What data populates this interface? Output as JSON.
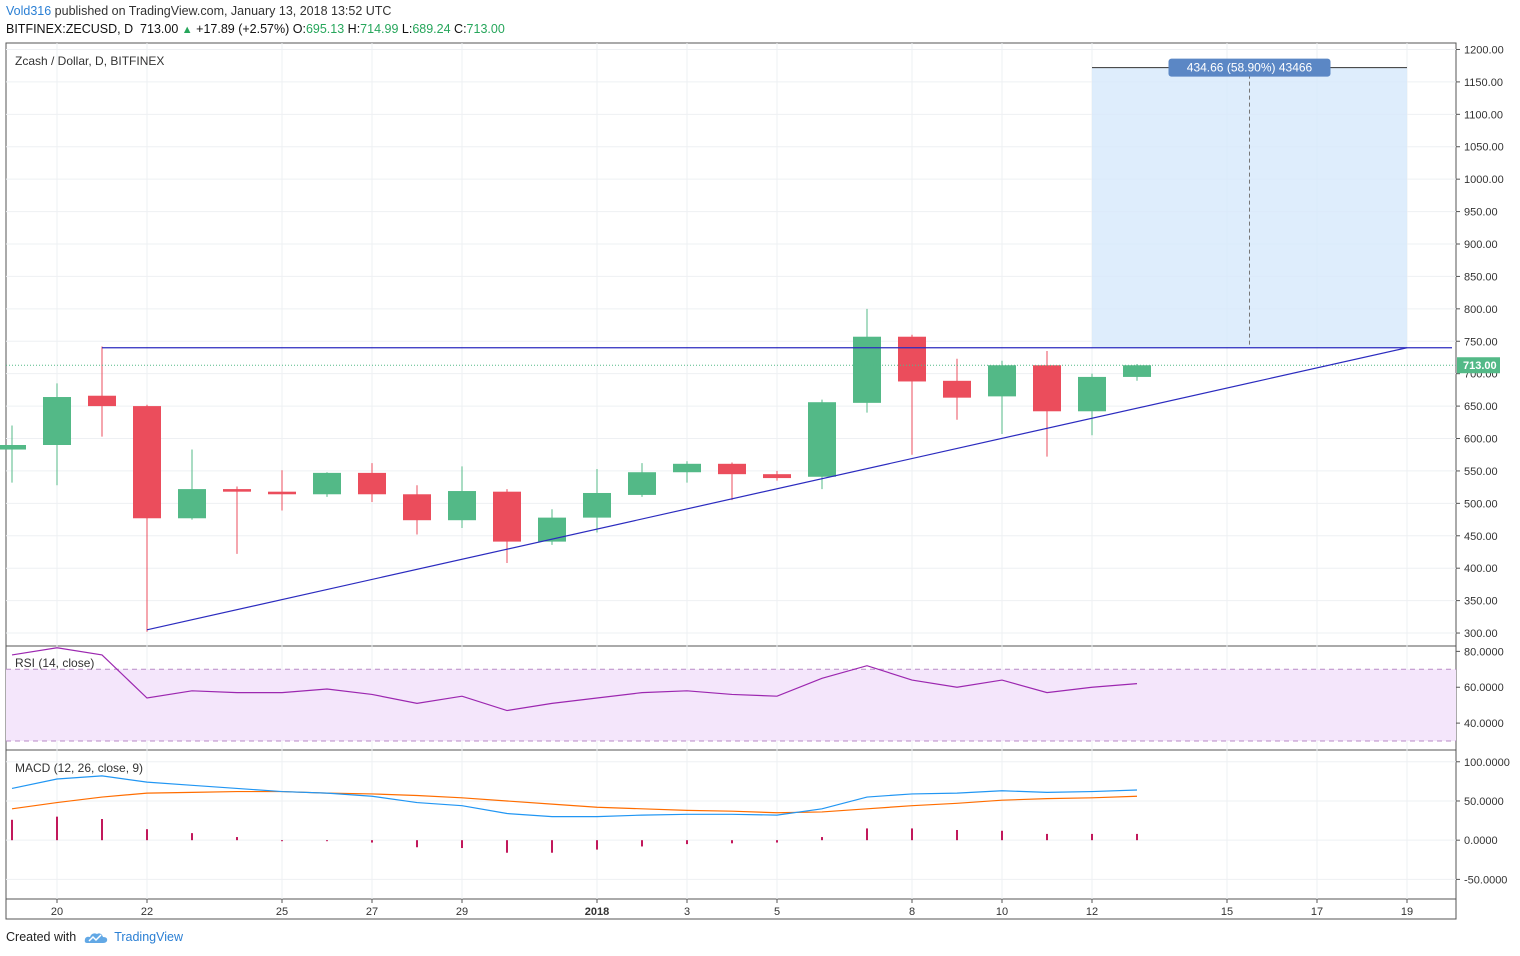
{
  "header": {
    "author": "Vold316",
    "published_text": " published on TradingView.com, January 13, 2018 13:52 UTC",
    "symbol": "BITFINEX:ZECUSD, D",
    "last": "713.00",
    "change": "+17.89 (+2.57%)",
    "o_label": "O:",
    "o": "695.13",
    "h_label": "H:",
    "h": "714.99",
    "l_label": "L:",
    "l": "689.24",
    "c_label": "C:",
    "c": "713.00"
  },
  "footer": {
    "created_with": "Created with",
    "brand": "TradingView"
  },
  "colors": {
    "up": "#53b987",
    "down": "#eb4d5c",
    "line": "#2b2bbf",
    "rsi": "#9c27b0",
    "macd": "#2196f3",
    "signal": "#ff6d00",
    "box": "#d6e9fb",
    "label": "#5b87c5"
  },
  "chart_data": {
    "type": "candlestick",
    "title": "Zcash / Dollar, D, BITFINEX",
    "x_labels": [
      {
        "i": 1,
        "text": "20"
      },
      {
        "i": 3,
        "text": "22"
      },
      {
        "i": 6,
        "text": "25"
      },
      {
        "i": 8,
        "text": "27"
      },
      {
        "i": 10,
        "text": "29"
      },
      {
        "i": 13,
        "text": "2018"
      },
      {
        "i": 15,
        "text": "3"
      },
      {
        "i": 17,
        "text": "5"
      },
      {
        "i": 20,
        "text": "8"
      },
      {
        "i": 22,
        "text": "10"
      },
      {
        "i": 24,
        "text": "12"
      },
      {
        "i": 27,
        "text": "15"
      },
      {
        "i": 29,
        "text": "17"
      },
      {
        "i": 31,
        "text": "19"
      }
    ],
    "price_axis": {
      "ticks": [
        "1200.00",
        "1150.00",
        "1100.00",
        "1050.00",
        "1000.00",
        "950.00",
        "900.00",
        "850.00",
        "800.00",
        "750.00",
        "700.00",
        "650.00",
        "600.00",
        "550.00",
        "500.00",
        "450.00",
        "400.00",
        "350.00",
        "300.00"
      ],
      "range": [
        280,
        1210
      ],
      "last_label": "713.00",
      "last": 713
    },
    "candles": [
      {
        "o": 583,
        "h": 620,
        "l": 532,
        "c": 590
      },
      {
        "o": 590,
        "h": 685,
        "l": 528,
        "c": 664
      },
      {
        "o": 666,
        "h": 742,
        "l": 603,
        "c": 650
      },
      {
        "o": 650,
        "h": 652,
        "l": 302,
        "c": 477
      },
      {
        "o": 477,
        "h": 583,
        "l": 475,
        "c": 522
      },
      {
        "o": 522,
        "h": 526,
        "l": 422,
        "c": 518
      },
      {
        "o": 518,
        "h": 551,
        "l": 489,
        "c": 514
      },
      {
        "o": 514,
        "h": 548,
        "l": 510,
        "c": 547
      },
      {
        "o": 547,
        "h": 562,
        "l": 502,
        "c": 514
      },
      {
        "o": 514,
        "h": 528,
        "l": 452,
        "c": 474
      },
      {
        "o": 474,
        "h": 557,
        "l": 462,
        "c": 519
      },
      {
        "o": 518,
        "h": 522,
        "l": 408,
        "c": 441
      },
      {
        "o": 441,
        "h": 491,
        "l": 436,
        "c": 478
      },
      {
        "o": 478,
        "h": 553,
        "l": 455,
        "c": 516
      },
      {
        "o": 513,
        "h": 562,
        "l": 510,
        "c": 548
      },
      {
        "o": 548,
        "h": 565,
        "l": 532,
        "c": 561
      },
      {
        "o": 561,
        "h": 563,
        "l": 505,
        "c": 545
      },
      {
        "o": 545,
        "h": 550,
        "l": 535,
        "c": 539
      },
      {
        "o": 541,
        "h": 660,
        "l": 522,
        "c": 656
      },
      {
        "o": 655,
        "h": 800,
        "l": 640,
        "c": 757
      },
      {
        "o": 757,
        "h": 760,
        "l": 575,
        "c": 688
      },
      {
        "o": 689,
        "h": 723,
        "l": 629,
        "c": 663
      },
      {
        "o": 665,
        "h": 720,
        "l": 607,
        "c": 713
      },
      {
        "o": 713,
        "h": 735,
        "l": 572,
        "c": 642
      },
      {
        "o": 642,
        "h": 700,
        "l": 605,
        "c": 695
      },
      {
        "o": 695,
        "h": 715,
        "l": 689,
        "c": 713
      }
    ],
    "horizontal_line": 740,
    "trend_line": [
      {
        "i": 3,
        "price": 305
      },
      {
        "i": 31,
        "price": 740
      }
    ],
    "projection": {
      "label": "434.66 (58.90%) 43466",
      "from_i": 24,
      "to_i": 31,
      "low": 740,
      "high": 1172
    },
    "rsi": {
      "title": "RSI (14, close)",
      "ticks": [
        "80.0000",
        "60.0000",
        "40.0000"
      ],
      "range": [
        25,
        83
      ],
      "band": [
        30,
        70
      ],
      "values": [
        78,
        82,
        78,
        54,
        58,
        57,
        57,
        59,
        56,
        51,
        55,
        47,
        51,
        54,
        57,
        58,
        56,
        55,
        65,
        72,
        64,
        60,
        64,
        57,
        60,
        62
      ]
    },
    "macd": {
      "title": "MACD (12, 26, close, 9)",
      "ticks": [
        "100.0000",
        "50.0000",
        "0.0000",
        "-50.0000"
      ],
      "range": [
        -75,
        115
      ],
      "macd": [
        66,
        78,
        82,
        74,
        70,
        66,
        62,
        60,
        56,
        48,
        44,
        34,
        30,
        30,
        32,
        33,
        33,
        32,
        40,
        55,
        59,
        60,
        63,
        61,
        62,
        64
      ],
      "signal": [
        40,
        48,
        55,
        60,
        61,
        62,
        62,
        60,
        59,
        57,
        54,
        50,
        46,
        42,
        40,
        38,
        37,
        35,
        36,
        40,
        44,
        47,
        51,
        53,
        54,
        56
      ],
      "hist": [
        26,
        30,
        27,
        14,
        9,
        4,
        0,
        0,
        -3,
        -9,
        -10,
        -16,
        -16,
        -12,
        -8,
        -5,
        -4,
        -3,
        4,
        15,
        15,
        13,
        12,
        8,
        8,
        8
      ]
    }
  }
}
